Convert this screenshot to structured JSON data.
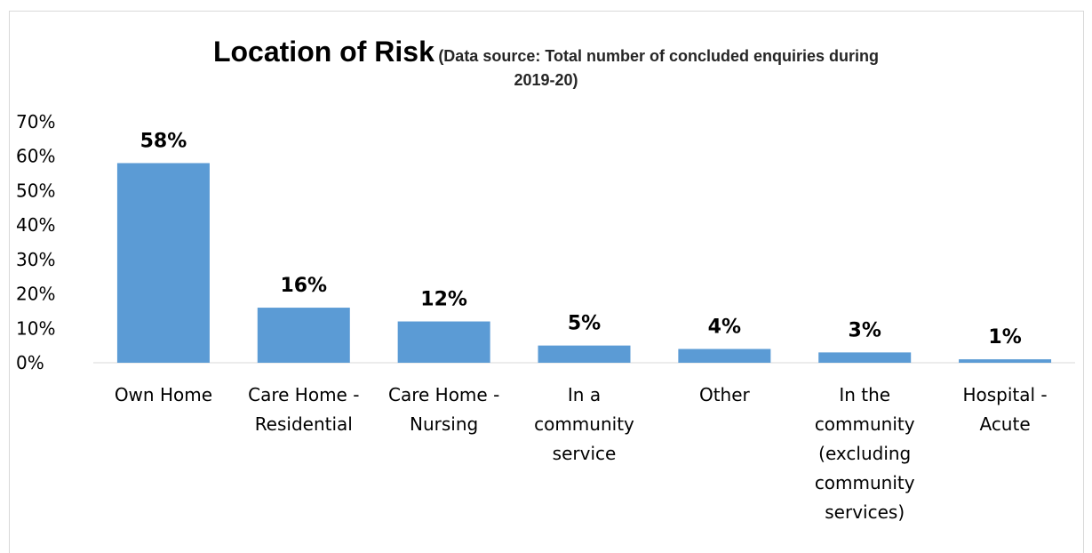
{
  "chart_data": {
    "type": "bar",
    "title": "Location of Risk",
    "subtitle": "(Data source: Total number of concluded enquiries during 2019-20)",
    "subtitle_line1": "(Data source: Total number of concluded enquiries during",
    "subtitle_line2": "2019-20)",
    "categories": [
      "Own Home",
      "Care Home - Residential",
      "Care Home - Nursing",
      "In a community service",
      "Other",
      "In the community (excluding community services)",
      "Hospital - Acute"
    ],
    "category_lines": [
      [
        "Own Home"
      ],
      [
        "Care Home -",
        "Residential"
      ],
      [
        "Care Home -",
        "Nursing"
      ],
      [
        "In a",
        "community",
        "service"
      ],
      [
        "Other"
      ],
      [
        "In the",
        "community",
        "(excluding",
        "community",
        "services)"
      ],
      [
        "Hospital -",
        "Acute"
      ]
    ],
    "values": [
      58,
      16,
      12,
      5,
      4,
      3,
      1
    ],
    "data_labels": [
      "58%",
      "16%",
      "12%",
      "5%",
      "4%",
      "3%",
      "1%"
    ],
    "yticks": [
      "0%",
      "10%",
      "20%",
      "30%",
      "40%",
      "50%",
      "60%",
      "70%"
    ],
    "ylim": [
      0,
      70
    ],
    "xlabel": "",
    "ylabel": "",
    "grid": false,
    "legend": "none",
    "bar_color": "#5B9BD5"
  }
}
